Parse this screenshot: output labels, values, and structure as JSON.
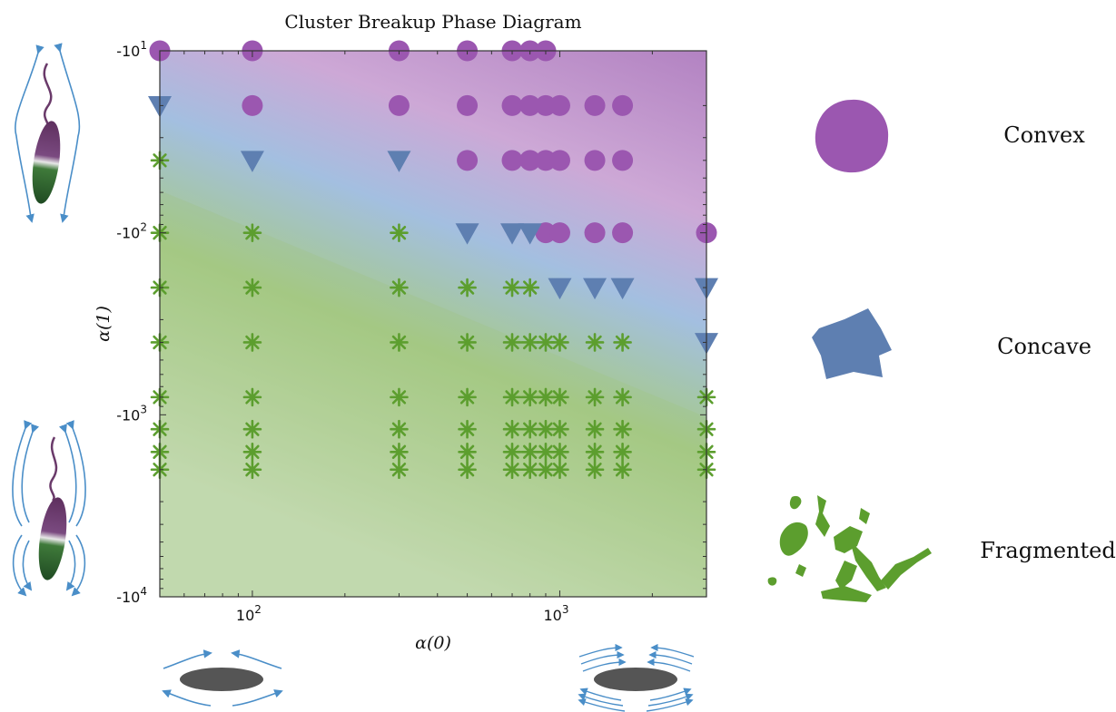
{
  "chart_data": {
    "type": "scatter",
    "title": "Cluster Breakup Phase Diagram",
    "xlabel": "α(0)",
    "ylabel": "α(1)",
    "x_scale": "log",
    "y_scale": "symlog-negative",
    "xlim": [
      50,
      3000
    ],
    "ylim": [
      -10000,
      -10
    ],
    "x_ticks": [
      {
        "value": 100,
        "label": "10",
        "exp": "2"
      },
      {
        "value": 1000,
        "label": "10",
        "exp": "3"
      }
    ],
    "y_ticks": [
      {
        "value": -10,
        "label": "-10",
        "exp": "1"
      },
      {
        "value": -100,
        "label": "-10",
        "exp": "2"
      },
      {
        "value": -1000,
        "label": "-10",
        "exp": "3"
      },
      {
        "value": -10000,
        "label": "-10",
        "exp": "4"
      }
    ],
    "grid": false,
    "background_regions": [
      "Convex",
      "Concave",
      "Fragmented"
    ],
    "series": [
      {
        "name": "Convex",
        "marker": "circle",
        "color": "#9b57b0",
        "points": [
          [
            50,
            -10
          ],
          [
            100,
            -10
          ],
          [
            300,
            -10
          ],
          [
            500,
            -10
          ],
          [
            700,
            -10
          ],
          [
            800,
            -10
          ],
          [
            900,
            -10
          ],
          [
            100,
            -20
          ],
          [
            300,
            -20
          ],
          [
            500,
            -20
          ],
          [
            700,
            -20
          ],
          [
            800,
            -20
          ],
          [
            900,
            -20
          ],
          [
            1000,
            -20
          ],
          [
            1300,
            -20
          ],
          [
            1600,
            -20
          ],
          [
            500,
            -40
          ],
          [
            700,
            -40
          ],
          [
            800,
            -40
          ],
          [
            900,
            -40
          ],
          [
            1000,
            -40
          ],
          [
            1300,
            -40
          ],
          [
            1600,
            -40
          ],
          [
            900,
            -100
          ],
          [
            1000,
            -100
          ],
          [
            1300,
            -100
          ],
          [
            1600,
            -100
          ],
          [
            3000,
            -100
          ]
        ]
      },
      {
        "name": "Concave",
        "marker": "triangle-down",
        "color": "#5e7fb1",
        "points": [
          [
            50,
            -20
          ],
          [
            100,
            -40
          ],
          [
            300,
            -40
          ],
          [
            500,
            -100
          ],
          [
            700,
            -100
          ],
          [
            800,
            -100
          ],
          [
            1000,
            -200
          ],
          [
            1300,
            -200
          ],
          [
            1600,
            -200
          ],
          [
            3000,
            -200
          ],
          [
            3000,
            -400
          ]
        ]
      },
      {
        "name": "Fragmented",
        "marker": "asterisk",
        "color": "#5c9e2e",
        "points": [
          [
            50,
            -40
          ],
          [
            50,
            -100
          ],
          [
            50,
            -200
          ],
          [
            50,
            -400
          ],
          [
            50,
            -800
          ],
          [
            50,
            -1200
          ],
          [
            50,
            -1600
          ],
          [
            50,
            -2000
          ],
          [
            100,
            -100
          ],
          [
            100,
            -200
          ],
          [
            100,
            -400
          ],
          [
            100,
            -800
          ],
          [
            100,
            -1200
          ],
          [
            100,
            -1600
          ],
          [
            100,
            -2000
          ],
          [
            300,
            -100
          ],
          [
            300,
            -200
          ],
          [
            300,
            -400
          ],
          [
            300,
            -800
          ],
          [
            300,
            -1200
          ],
          [
            300,
            -1600
          ],
          [
            300,
            -2000
          ],
          [
            500,
            -200
          ],
          [
            500,
            -400
          ],
          [
            500,
            -800
          ],
          [
            500,
            -1200
          ],
          [
            500,
            -1600
          ],
          [
            500,
            -2000
          ],
          [
            700,
            -200
          ],
          [
            700,
            -400
          ],
          [
            700,
            -800
          ],
          [
            700,
            -1200
          ],
          [
            700,
            -1600
          ],
          [
            700,
            -2000
          ],
          [
            800,
            -200
          ],
          [
            800,
            -400
          ],
          [
            800,
            -800
          ],
          [
            800,
            -1200
          ],
          [
            800,
            -1600
          ],
          [
            800,
            -2000
          ],
          [
            900,
            -400
          ],
          [
            900,
            -800
          ],
          [
            900,
            -1200
          ],
          [
            900,
            -1600
          ],
          [
            900,
            -2000
          ],
          [
            1000,
            -400
          ],
          [
            1000,
            -800
          ],
          [
            1000,
            -1200
          ],
          [
            1000,
            -1600
          ],
          [
            1000,
            -2000
          ],
          [
            1300,
            -400
          ],
          [
            1300,
            -800
          ],
          [
            1300,
            -1200
          ],
          [
            1300,
            -1600
          ],
          [
            1300,
            -2000
          ],
          [
            1600,
            -400
          ],
          [
            1600,
            -800
          ],
          [
            1600,
            -1200
          ],
          [
            1600,
            -1600
          ],
          [
            1600,
            -2000
          ],
          [
            3000,
            -800
          ],
          [
            3000,
            -1200
          ],
          [
            3000,
            -1600
          ],
          [
            3000,
            -2000
          ]
        ]
      }
    ]
  },
  "legend": {
    "placement": "right",
    "items": [
      {
        "label": "Convex",
        "color": "#9b57b0",
        "icon": "convex-blob-icon"
      },
      {
        "label": "Concave",
        "color": "#5e7fb1",
        "icon": "concave-blob-icon"
      },
      {
        "label": "Fragmented",
        "color": "#5c9e2e",
        "icon": "fragmented-shape-icon"
      }
    ]
  },
  "illustrations": {
    "top_left": "swimmer-weak-flow-icon",
    "bottom_left": "swimmer-strong-flow-icon",
    "bottom_low": "ellipse-weak-flow-icon",
    "bottom_high": "ellipse-strong-flow-icon",
    "body_color": "#555555",
    "flow_color": "#4a8ec8"
  }
}
